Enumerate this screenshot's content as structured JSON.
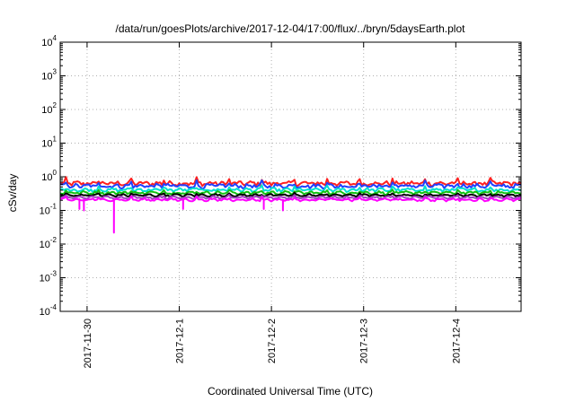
{
  "chart_data": {
    "type": "line",
    "title": "/data/run/goesPlots/archive/2017-12-04/17:00/flux/../bryn/5daysEarth.plot",
    "xlabel": "Coordinated Universal Time (UTC)",
    "ylabel": "cSv/day",
    "yscale": "log",
    "ylim": [
      0.0001,
      10000
    ],
    "y_ticks": [
      {
        "base": "10",
        "exp": "-4",
        "value": 0.0001
      },
      {
        "base": "10",
        "exp": "-3",
        "value": 0.001
      },
      {
        "base": "10",
        "exp": "-2",
        "value": 0.01
      },
      {
        "base": "10",
        "exp": "-1",
        "value": 0.1
      },
      {
        "base": "10",
        "exp": "0",
        "value": 1
      },
      {
        "base": "10",
        "exp": "1",
        "value": 10
      },
      {
        "base": "10",
        "exp": "2",
        "value": 100
      },
      {
        "base": "10",
        "exp": "3",
        "value": 1000
      },
      {
        "base": "10",
        "exp": "4",
        "value": 10000
      }
    ],
    "xlim": [
      "2017-11-29T17:00",
      "2017-12-04T17:00"
    ],
    "x_ticks": [
      "2017-11-30",
      "2017-12-1",
      "2017-12-2",
      "2017-12-3",
      "2017-12-4"
    ],
    "grid": true,
    "series": [
      {
        "color": "#ff2020",
        "baseline": 0.62,
        "jitter": 0.28
      },
      {
        "color": "#2040ff",
        "baseline": 0.52,
        "jitter": 0.25
      },
      {
        "color": "#00e0d0",
        "baseline": 0.4,
        "jitter": 0.2
      },
      {
        "color": "#10c010",
        "baseline": 0.33,
        "jitter": 0.15
      },
      {
        "color": "#000000",
        "baseline": 0.28,
        "jitter": 0.1
      },
      {
        "color": "#a040c0",
        "baseline": 0.24,
        "jitter": 0.1
      },
      {
        "color": "#ff00ff",
        "baseline": 0.205,
        "jitter": 0.12,
        "dips": [
          {
            "x": "2017-11-30T07:00",
            "y": 0.022
          },
          {
            "x": "2017-12-01T01:00",
            "y": 0.11
          },
          {
            "x": "2017-11-29T22:00",
            "y": 0.11
          },
          {
            "x": "2017-11-29T23:10",
            "y": 0.1
          },
          {
            "x": "2017-12-01T22:00",
            "y": 0.11
          },
          {
            "x": "2017-12-02T03:00",
            "y": 0.1
          }
        ]
      }
    ]
  }
}
